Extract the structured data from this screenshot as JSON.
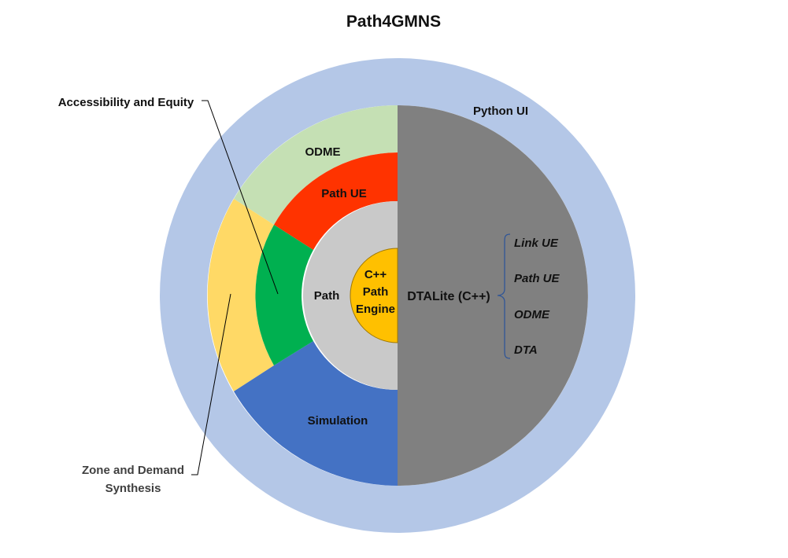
{
  "title": "Path4GMNS",
  "rings": {
    "outer": "Python UI",
    "dtalite": "DTALite (C++)",
    "path": "Path",
    "engine": [
      "C++",
      "Path",
      "Engine"
    ]
  },
  "modules": {
    "odme": "ODME",
    "path_ue": "Path UE",
    "simulation": "Simulation"
  },
  "dtalite_features": [
    "Link UE",
    "Path UE",
    "ODME",
    "DTA"
  ],
  "callouts": {
    "accessibility": "Accessibility and Equity",
    "zone": [
      "Zone and Demand",
      "Synthesis"
    ]
  },
  "colors": {
    "outer_ring": "#b4c7e7",
    "dtalite": "#808080",
    "odme": "#c5e0b4",
    "path_ue": "#ff3300",
    "simulation": "#4472c4",
    "zone": "#ffd966",
    "accessibility": "#00b050",
    "path_ring": "#c9c9c9",
    "engine": "#ffc000"
  }
}
